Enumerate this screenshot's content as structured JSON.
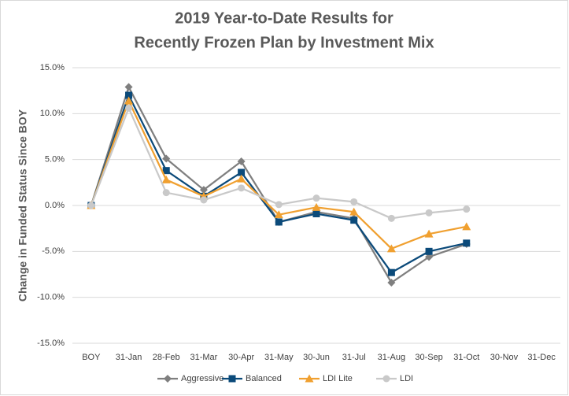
{
  "chart_data": {
    "type": "line",
    "title": [
      "2019 Year-to-Date Results for",
      "Recently Frozen Plan by Investment Mix"
    ],
    "y_label": "Change in Funded Status Since BOY",
    "categories": [
      "BOY",
      "31-Jan",
      "28-Feb",
      "31-Mar",
      "30-Apr",
      "31-May",
      "30-Jun",
      "31-Jul",
      "31-Aug",
      "30-Sep",
      "31-Oct",
      "30-Nov",
      "31-Dec"
    ],
    "series": [
      {
        "name": "Aggressive",
        "color": "#7f7f7f",
        "marker": "diamond",
        "values": [
          0,
          12.9,
          5.1,
          1.7,
          4.8,
          -1.8,
          -0.7,
          -1.4,
          -8.4,
          -5.6,
          -4.2,
          null,
          null
        ]
      },
      {
        "name": "Balanced",
        "color": "#0b4a7a",
        "marker": "square",
        "values": [
          0,
          12.0,
          3.8,
          1.0,
          3.6,
          -1.8,
          -0.9,
          -1.6,
          -7.3,
          -5.0,
          -4.1,
          null,
          null
        ]
      },
      {
        "name": "LDI Lite",
        "color": "#f0a030",
        "marker": "triangle",
        "values": [
          0,
          11.4,
          2.8,
          1.0,
          2.9,
          -1.0,
          -0.2,
          -0.7,
          -4.7,
          -3.1,
          -2.3,
          null,
          null
        ]
      },
      {
        "name": "LDI",
        "color": "#c9c9c9",
        "marker": "circle",
        "values": [
          0,
          10.6,
          1.4,
          0.6,
          1.9,
          0.1,
          0.8,
          0.4,
          -1.4,
          -0.8,
          -0.4,
          null,
          null
        ]
      }
    ],
    "ylim": [
      -15,
      15
    ],
    "yticks": [
      {
        "value": -15,
        "label": "-15.0%"
      },
      {
        "value": -10,
        "label": "-10.0%"
      },
      {
        "value": -5,
        "label": "-5.0%"
      },
      {
        "value": 0,
        "label": "0.0%"
      },
      {
        "value": 5,
        "label": "5.0%"
      },
      {
        "value": 10,
        "label": "10.0%"
      },
      {
        "value": 15,
        "label": "15.0%"
      }
    ],
    "grid": true,
    "legend": "bottom"
  }
}
